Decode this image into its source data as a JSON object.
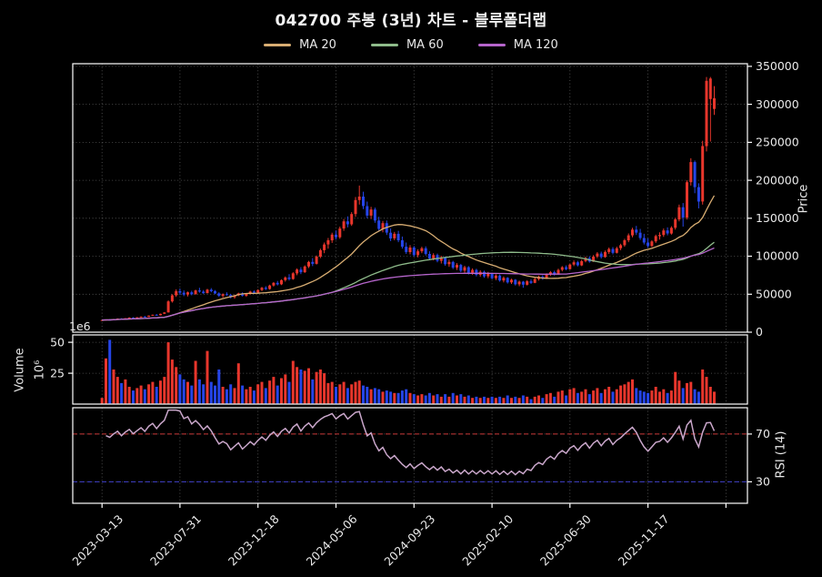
{
  "title": "042700 주봉 (3년) 차트 - 블루폴더랩",
  "legend": {
    "items": [
      {
        "label": "MA 20",
        "color": "#d8ad72",
        "period": 20
      },
      {
        "label": "MA 60",
        "color": "#8fbc8b",
        "period": 60
      },
      {
        "label": "MA 120",
        "color": "#b665cc",
        "period": 120
      }
    ]
  },
  "axes": {
    "price": {
      "title": "Price",
      "ticks": [
        0,
        50000,
        100000,
        150000,
        200000,
        250000,
        300000,
        350000
      ],
      "side": "right"
    },
    "volume": {
      "title": "Volume",
      "unit": "10⁶",
      "offset_text": "1e6",
      "ticks": [
        25,
        50
      ],
      "side": "left"
    },
    "rsi": {
      "title": "RSI (14)",
      "ticks": [
        30,
        70
      ],
      "upper_band": 70,
      "lower_band": 30,
      "side": "right"
    },
    "x": {
      "tick_positions": [
        0,
        20,
        40,
        60,
        80,
        100,
        120,
        140,
        160
      ],
      "tick_labels": [
        "2023-03-13",
        "2023-07-31",
        "2023-12-18",
        "2024-05-06",
        "2024-09-23",
        "2025-02-10",
        "2025-06-30",
        "2025-11-17"
      ]
    }
  },
  "colors": {
    "background": "#000000",
    "up_candle": "#e8362c",
    "down_candle": "#2545e8",
    "ma20": "#d8ad72",
    "ma60": "#8fbc8b",
    "ma120": "#b665cc",
    "rsi_line": "#c9a6ca",
    "rsi_upper": "#cc3b3b",
    "rsi_lower": "#4040cc",
    "grid": "#999999",
    "spine": "#ffffff",
    "text": "#eaeaea"
  },
  "chart_data": [
    {
      "type": "candlestick",
      "title": "042700 주봉 (3년) 차트 - 블루폴더랩",
      "interval": "weekly",
      "start": "2023-03-13",
      "ylabel": "Price",
      "ylim": [
        0,
        353500
      ],
      "grid": true,
      "legend_position": "top",
      "overlays": [
        {
          "name": "MA 20",
          "type": "sma",
          "period": 20
        },
        {
          "name": "MA 60",
          "type": "sma",
          "period": 60
        },
        {
          "name": "MA 120",
          "type": "sma",
          "period": 120
        }
      ],
      "ohlcv_format": [
        "open",
        "high",
        "low",
        "close",
        "volume_millions"
      ],
      "values": [
        [
          15600,
          16200,
          15100,
          15900,
          5
        ],
        [
          15900,
          16800,
          15600,
          16500,
          37
        ],
        [
          16500,
          17200,
          16100,
          16300,
          52
        ],
        [
          16300,
          17500,
          16200,
          17200,
          28
        ],
        [
          17200,
          18200,
          16900,
          17900,
          22
        ],
        [
          17900,
          18400,
          17100,
          17400,
          17
        ],
        [
          17400,
          18600,
          17200,
          18400,
          20
        ],
        [
          18400,
          19600,
          18100,
          19200,
          14
        ],
        [
          19200,
          19800,
          18300,
          18700,
          11
        ],
        [
          18700,
          19900,
          18400,
          19600,
          13
        ],
        [
          19600,
          20800,
          19300,
          20500,
          15
        ],
        [
          20500,
          21500,
          19800,
          20100,
          12
        ],
        [
          20100,
          22000,
          19900,
          21800,
          16
        ],
        [
          21800,
          23200,
          21400,
          22900,
          18
        ],
        [
          22900,
          23800,
          21900,
          22300,
          14
        ],
        [
          22300,
          24500,
          22100,
          24200,
          19
        ],
        [
          24200,
          26500,
          23900,
          26000,
          22
        ],
        [
          26000,
          42000,
          25800,
          40500,
          50
        ],
        [
          40500,
          50000,
          39000,
          48500,
          36
        ],
        [
          48500,
          56500,
          46500,
          54000,
          30
        ],
        [
          54000,
          57500,
          49000,
          52000,
          24
        ],
        [
          52000,
          55000,
          47500,
          49500,
          20
        ],
        [
          49500,
          53500,
          47000,
          52500,
          18
        ],
        [
          52500,
          54500,
          48500,
          50000,
          15
        ],
        [
          50000,
          56000,
          49500,
          55000,
          35
        ],
        [
          55000,
          58500,
          52000,
          53500,
          20
        ],
        [
          53500,
          55500,
          50500,
          51500,
          16
        ],
        [
          51500,
          57000,
          51000,
          56000,
          43
        ],
        [
          56000,
          58000,
          52500,
          54000,
          18
        ],
        [
          54000,
          55500,
          50000,
          51000,
          15
        ],
        [
          51000,
          52500,
          46500,
          48000,
          28
        ],
        [
          48000,
          51000,
          45500,
          50000,
          14
        ],
        [
          50000,
          52500,
          48000,
          49000,
          12
        ],
        [
          49000,
          50500,
          44500,
          46000,
          16
        ],
        [
          46000,
          49500,
          44000,
          48500,
          13
        ],
        [
          48500,
          52000,
          47500,
          51000,
          33
        ],
        [
          51000,
          52500,
          47000,
          48000,
          15
        ],
        [
          48000,
          51500,
          46500,
          50500,
          12
        ],
        [
          50500,
          54500,
          49500,
          53500,
          14
        ],
        [
          53500,
          55000,
          50500,
          52000,
          11
        ],
        [
          52000,
          56500,
          51500,
          55500,
          16
        ],
        [
          55500,
          59500,
          54000,
          58500,
          18
        ],
        [
          58500,
          60500,
          55500,
          57000,
          13
        ],
        [
          57000,
          62500,
          56000,
          61500,
          19
        ],
        [
          61500,
          66000,
          60000,
          65000,
          22
        ],
        [
          65000,
          67500,
          61500,
          63000,
          15
        ],
        [
          63000,
          69500,
          62000,
          68500,
          21
        ],
        [
          68500,
          73500,
          66500,
          72000,
          24
        ],
        [
          72000,
          76500,
          68000,
          70000,
          18
        ],
        [
          70000,
          79000,
          69000,
          77500,
          35
        ],
        [
          77500,
          84000,
          75000,
          82500,
          30
        ],
        [
          82500,
          85500,
          76500,
          79000,
          28
        ],
        [
          79000,
          88000,
          78000,
          86500,
          27
        ],
        [
          86500,
          94000,
          84500,
          92500,
          29
        ],
        [
          92500,
          97500,
          87000,
          90000,
          20
        ],
        [
          90000,
          101000,
          89000,
          99500,
          26
        ],
        [
          99500,
          110000,
          97500,
          108000,
          28
        ],
        [
          108000,
          118000,
          104000,
          115500,
          25
        ],
        [
          115500,
          124000,
          110000,
          121000,
          17
        ],
        [
          121000,
          131000,
          117500,
          128500,
          18
        ],
        [
          128500,
          134000,
          122000,
          125000,
          14
        ],
        [
          125000,
          139000,
          123000,
          136500,
          16
        ],
        [
          136500,
          149000,
          133500,
          146000,
          18
        ],
        [
          146000,
          152500,
          138000,
          142000,
          13
        ],
        [
          142000,
          158000,
          140000,
          155500,
          16
        ],
        [
          155500,
          178000,
          152000,
          174000,
          18
        ],
        [
          174000,
          193000,
          168000,
          178500,
          19
        ],
        [
          178500,
          185000,
          162000,
          166000,
          15
        ],
        [
          166000,
          172000,
          150000,
          153500,
          14
        ],
        [
          153500,
          165000,
          149000,
          161500,
          12
        ],
        [
          161500,
          164000,
          144000,
          147000,
          13
        ],
        [
          147000,
          152000,
          133000,
          136000,
          12
        ],
        [
          136000,
          146500,
          131500,
          143500,
          10
        ],
        [
          143500,
          147000,
          128000,
          131000,
          11
        ],
        [
          131000,
          136500,
          120000,
          123500,
          10
        ],
        [
          123500,
          132000,
          121000,
          129500,
          9
        ],
        [
          129500,
          133500,
          118500,
          121000,
          9
        ],
        [
          121000,
          126000,
          110000,
          112500,
          11
        ],
        [
          112500,
          118000,
          103000,
          105500,
          12
        ],
        [
          105500,
          114500,
          102500,
          111500,
          9
        ],
        [
          111500,
          113500,
          99500,
          101500,
          8
        ],
        [
          101500,
          109000,
          98500,
          106500,
          7
        ],
        [
          106500,
          112500,
          104000,
          110500,
          8
        ],
        [
          110500,
          113000,
          101000,
          103000,
          7
        ],
        [
          103000,
          106500,
          95000,
          97000,
          9
        ],
        [
          97000,
          104000,
          94500,
          101500,
          7
        ],
        [
          101500,
          103500,
          92000,
          94000,
          8
        ],
        [
          94000,
          100500,
          90500,
          98500,
          6
        ],
        [
          98500,
          99500,
          87500,
          89500,
          8
        ],
        [
          89500,
          95500,
          86000,
          92500,
          6
        ],
        [
          92500,
          94000,
          83000,
          85000,
          9
        ],
        [
          85000,
          91000,
          82000,
          88500,
          7
        ],
        [
          88500,
          90000,
          79000,
          81000,
          8
        ],
        [
          81000,
          87500,
          78500,
          85500,
          6
        ],
        [
          85500,
          87000,
          76000,
          78000,
          7
        ],
        [
          78000,
          84000,
          75500,
          82000,
          5
        ],
        [
          82000,
          83500,
          73500,
          75500,
          6
        ],
        [
          75500,
          81500,
          73000,
          79500,
          5
        ],
        [
          79500,
          81000,
          71500,
          73500,
          6
        ],
        [
          73500,
          79500,
          71000,
          77000,
          5
        ],
        [
          77000,
          78500,
          69500,
          71000,
          6
        ],
        [
          71000,
          76500,
          68500,
          74500,
          5
        ],
        [
          74500,
          76000,
          66500,
          68000,
          6
        ],
        [
          68000,
          73500,
          65500,
          71500,
          5
        ],
        [
          71500,
          72500,
          64000,
          65500,
          7
        ],
        [
          65500,
          70500,
          63500,
          69000,
          5
        ],
        [
          69000,
          70000,
          61500,
          63000,
          6
        ],
        [
          63000,
          68000,
          60500,
          66500,
          5
        ],
        [
          66500,
          67500,
          58500,
          62500,
          7
        ],
        [
          62500,
          68500,
          61500,
          67000,
          6
        ],
        [
          67000,
          69500,
          63500,
          65000,
          4
        ],
        [
          65000,
          71500,
          64500,
          70000,
          6
        ],
        [
          70000,
          74500,
          68000,
          73000,
          7
        ],
        [
          73000,
          75000,
          69000,
          70500,
          5
        ],
        [
          70500,
          77500,
          70000,
          76000,
          8
        ],
        [
          76000,
          80500,
          74000,
          79000,
          9
        ],
        [
          79000,
          81000,
          74500,
          76000,
          6
        ],
        [
          76000,
          83500,
          75500,
          82000,
          10
        ],
        [
          82000,
          87000,
          80000,
          85500,
          11
        ],
        [
          85500,
          88000,
          81500,
          83000,
          7
        ],
        [
          83000,
          90500,
          82500,
          89000,
          12
        ],
        [
          89000,
          94500,
          87000,
          92000,
          13
        ],
        [
          92000,
          94000,
          86500,
          88000,
          9
        ],
        [
          88000,
          95500,
          87000,
          93500,
          10
        ],
        [
          93500,
          99500,
          92000,
          97500,
          12
        ],
        [
          97500,
          100000,
          91500,
          93000,
          8
        ],
        [
          93000,
          101500,
          92500,
          99500,
          11
        ],
        [
          99500,
          105500,
          97500,
          103500,
          13
        ],
        [
          103500,
          106000,
          97000,
          99000,
          9
        ],
        [
          99000,
          107500,
          98000,
          105500,
          12
        ],
        [
          105500,
          111500,
          103000,
          109500,
          14
        ],
        [
          109500,
          112000,
          102500,
          104500,
          10
        ],
        [
          104500,
          112500,
          103500,
          110500,
          12
        ],
        [
          110500,
          116500,
          108000,
          114500,
          15
        ],
        [
          114500,
          123000,
          112500,
          121000,
          16
        ],
        [
          121000,
          130000,
          118500,
          127500,
          18
        ],
        [
          127500,
          137500,
          125000,
          135000,
          20
        ],
        [
          135000,
          140000,
          128000,
          131000,
          13
        ],
        [
          131000,
          136000,
          121500,
          124000,
          11
        ],
        [
          124000,
          129500,
          115500,
          118000,
          10
        ],
        [
          118000,
          123500,
          111500,
          113500,
          9
        ],
        [
          113500,
          121000,
          112000,
          119500,
          11
        ],
        [
          119500,
          128500,
          117500,
          126500,
          14
        ],
        [
          126500,
          131500,
          122000,
          128000,
          10
        ],
        [
          128000,
          136500,
          125500,
          134000,
          12
        ],
        [
          134000,
          138000,
          127500,
          130000,
          9
        ],
        [
          130000,
          139500,
          128500,
          137500,
          11
        ],
        [
          137500,
          150500,
          135000,
          148500,
          26
        ],
        [
          148500,
          168000,
          146000,
          164500,
          19
        ],
        [
          164500,
          170000,
          139000,
          151000,
          13
        ],
        [
          151000,
          200000,
          148500,
          197500,
          17
        ],
        [
          197500,
          229000,
          193000,
          224000,
          18
        ],
        [
          224000,
          226000,
          183000,
          191000,
          12
        ],
        [
          191000,
          196000,
          163000,
          172000,
          10
        ],
        [
          172000,
          252000,
          168000,
          245000,
          28
        ],
        [
          245000,
          336000,
          238000,
          331000,
          22
        ],
        [
          307000,
          336000,
          251000,
          334000,
          14
        ],
        [
          294000,
          324000,
          286000,
          308000,
          10
        ]
      ]
    },
    {
      "type": "bar",
      "name": "Volume",
      "ylabel": "Volume 10⁶",
      "yticks": [
        25,
        50
      ],
      "ylim": [
        0,
        56
      ],
      "note": "values taken from volume_millions column of the candlestick series; bar color follows candle direction"
    },
    {
      "type": "line",
      "name": "RSI (14)",
      "yticks": [
        30,
        70
      ],
      "reference_lines": [
        {
          "value": 70,
          "style": "dashed",
          "color": "#cc3b3b"
        },
        {
          "value": 30,
          "style": "dashed",
          "color": "#4040cc"
        }
      ],
      "note": "Wilder RSI(14) computed from weekly closes of the candlestick series"
    }
  ]
}
